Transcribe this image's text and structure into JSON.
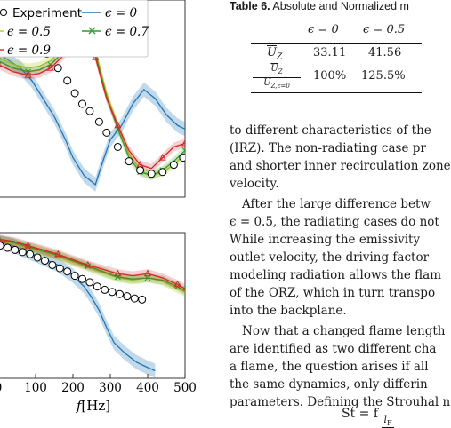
{
  "chart_data": [
    {
      "type": "line",
      "xlim": [
        0,
        500
      ],
      "legend": {
        "placement": "top",
        "entries": [
          {
            "label": "Experiment",
            "marker": "circle",
            "color": "#000000"
          },
          {
            "label": "ϵ = 0",
            "color": "#1f77b4"
          },
          {
            "label": "ϵ = 0.5",
            "color": "#b8c91e"
          },
          {
            "label": "ϵ = 0.7",
            "color": "#2ca02c",
            "marker": "x"
          },
          {
            "label": "ϵ = 0.9",
            "color": "#d62728",
            "marker": "triangle"
          }
        ]
      },
      "series": [
        {
          "name": "Experiment",
          "x": [
            10,
            30,
            55,
            75,
            100,
            130,
            160,
            185,
            205,
            225,
            245,
            270,
            290,
            320,
            350,
            380,
            410,
            440,
            470,
            495
          ],
          "y": [
            0.78,
            0.76,
            0.75,
            0.74,
            0.73,
            0.7,
            0.62,
            0.55,
            0.48,
            0.42,
            0.38,
            0.32,
            0.26,
            0.18,
            0.1,
            0.05,
            0.03,
            0.04,
            0.08,
            0.12
          ]
        },
        {
          "name": "ϵ = 0",
          "x": [
            0,
            30,
            60,
            90,
            120,
            150,
            180,
            200,
            230,
            260,
            280,
            300,
            330,
            360,
            390,
            420,
            450,
            480,
            500
          ],
          "y": [
            0.7,
            0.66,
            0.62,
            0.55,
            0.45,
            0.35,
            0.22,
            0.12,
            0.02,
            -0.03,
            0.1,
            0.22,
            0.3,
            0.42,
            0.5,
            0.45,
            0.36,
            0.3,
            0.28
          ]
        },
        {
          "name": "ϵ = 0.5",
          "x": [
            0,
            40,
            80,
            110,
            140,
            170,
            200,
            230,
            260,
            290,
            320,
            350,
            380,
            410,
            440,
            470,
            500
          ],
          "y": [
            0.68,
            0.64,
            0.62,
            0.63,
            0.66,
            0.72,
            0.82,
            0.88,
            0.72,
            0.48,
            0.3,
            0.14,
            0.05,
            0.02,
            0.04,
            0.08,
            0.14
          ]
        },
        {
          "name": "ϵ = 0.7",
          "x": [
            0,
            40,
            80,
            110,
            140,
            170,
            200,
            230,
            260,
            290,
            320,
            350,
            380,
            410,
            440,
            470,
            500
          ],
          "y": [
            0.66,
            0.62,
            0.6,
            0.61,
            0.64,
            0.7,
            0.8,
            0.85,
            0.7,
            0.46,
            0.28,
            0.12,
            0.04,
            0.02,
            0.05,
            0.1,
            0.16
          ]
        },
        {
          "name": "ϵ = 0.9",
          "x": [
            0,
            40,
            80,
            110,
            140,
            170,
            200,
            230,
            260,
            290,
            320,
            350,
            380,
            410,
            440,
            470,
            500
          ],
          "y": [
            0.64,
            0.6,
            0.58,
            0.59,
            0.62,
            0.68,
            0.76,
            0.82,
            0.68,
            0.45,
            0.3,
            0.16,
            0.08,
            0.06,
            0.12,
            0.18,
            0.2
          ]
        }
      ]
    },
    {
      "type": "line",
      "xlabel": "f[Hz]",
      "xticks": [
        "0",
        "100",
        "200",
        "300",
        "400",
        "500"
      ],
      "xlim": [
        0,
        500
      ],
      "series": [
        {
          "name": "Experiment",
          "x": [
            5,
            25,
            45,
            65,
            85,
            105,
            125,
            145,
            165,
            185,
            205,
            225,
            245,
            265,
            285,
            305,
            325,
            345,
            365,
            385
          ],
          "y": [
            0.88,
            0.86,
            0.84,
            0.82,
            0.8,
            0.77,
            0.74,
            0.7,
            0.67,
            0.64,
            0.6,
            0.57,
            0.54,
            0.5,
            0.47,
            0.45,
            0.43,
            0.41,
            0.39,
            0.38
          ]
        },
        {
          "name": "ϵ = 0",
          "x": [
            0,
            40,
            80,
            120,
            160,
            200,
            230,
            250,
            270,
            290,
            310,
            340,
            370,
            400,
            420
          ],
          "y": [
            0.92,
            0.88,
            0.82,
            0.76,
            0.7,
            0.6,
            0.5,
            0.4,
            0.28,
            0.12,
            -0.02,
            -0.12,
            -0.2,
            -0.25,
            -0.28
          ]
        },
        {
          "name": "ϵ = 0.5",
          "x": [
            0,
            40,
            80,
            120,
            160,
            200,
            240,
            280,
            320,
            360,
            400,
            440,
            480,
            500
          ],
          "y": [
            0.92,
            0.9,
            0.86,
            0.82,
            0.78,
            0.73,
            0.68,
            0.63,
            0.58,
            0.56,
            0.58,
            0.55,
            0.48,
            0.45
          ]
        },
        {
          "name": "ϵ = 0.7",
          "x": [
            0,
            40,
            80,
            120,
            160,
            200,
            240,
            280,
            320,
            360,
            400,
            440,
            480,
            500
          ],
          "y": [
            0.93,
            0.91,
            0.87,
            0.83,
            0.79,
            0.74,
            0.69,
            0.64,
            0.59,
            0.57,
            0.58,
            0.56,
            0.5,
            0.46
          ]
        },
        {
          "name": "ϵ = 0.9",
          "x": [
            0,
            40,
            80,
            120,
            160,
            200,
            240,
            280,
            320,
            360,
            400,
            440,
            480,
            500
          ],
          "y": [
            0.94,
            0.92,
            0.88,
            0.84,
            0.8,
            0.75,
            0.7,
            0.66,
            0.62,
            0.6,
            0.62,
            0.58,
            0.52,
            0.48
          ]
        }
      ]
    }
  ],
  "table": {
    "caption_label": "Table 6.",
    "caption_text": "Absolute and Normalized m",
    "header": [
      "ϵ = 0",
      "ϵ = 0.5"
    ],
    "row1_label": "U",
    "row1_sub": "Z",
    "row1": [
      "33.11",
      "41.56"
    ],
    "row2_num": "U",
    "row2_num_sub": "Z",
    "row2_den": "U",
    "row2_den_sub": "Z,ϵ=0",
    "row2": [
      "100%",
      "125.5%"
    ]
  },
  "text_lines": [
    "to different characteristics of the",
    "(IRZ). The non-radiating case pr",
    "and shorter inner recirculation zone",
    "velocity.",
    "After the large difference betw",
    "ϵ = 0.5, the radiating cases do not",
    "While increasing the emissivity",
    "outlet velocity, the driving factor",
    "modeling radiation allows the flam",
    "of the ORZ, which in turn transpo",
    "into the backplane.",
    "Now that a changed flame length",
    "are identified as two different cha",
    "a flame, the question arises if all",
    "the same dynamics, only differin",
    "parameters. Defining the Strouhal n"
  ],
  "formula": {
    "lhs": "St = f",
    "num": "l",
    "num_sub": "F"
  }
}
